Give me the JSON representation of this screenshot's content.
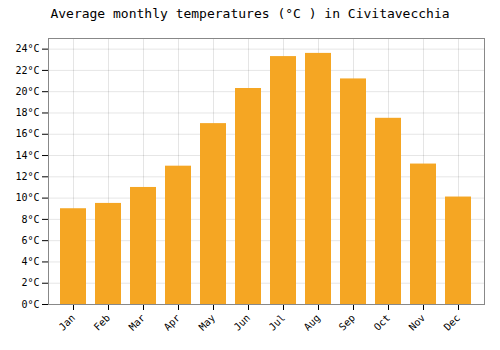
{
  "chart_data": {
    "type": "bar",
    "title": "Average monthly temperatures (°C ) in Civitavecchia",
    "categories": [
      "Jan",
      "Feb",
      "Mar",
      "Apr",
      "May",
      "Jun",
      "Jul",
      "Aug",
      "Sep",
      "Oct",
      "Nov",
      "Dec"
    ],
    "values": [
      9.0,
      9.5,
      11.0,
      13.0,
      17.0,
      20.3,
      23.3,
      23.6,
      21.2,
      17.5,
      13.2,
      10.1
    ],
    "color": "#F5A623",
    "ylim": [
      0,
      25
    ],
    "yticks": [
      {
        "value": 0,
        "label": "0°C"
      },
      {
        "value": 2,
        "label": "2°C"
      },
      {
        "value": 4,
        "label": "4°C"
      },
      {
        "value": 6,
        "label": "6°C"
      },
      {
        "value": 8,
        "label": "8°C"
      },
      {
        "value": 10,
        "label": "10°C"
      },
      {
        "value": 12,
        "label": "12°C"
      },
      {
        "value": 14,
        "label": "14°C"
      },
      {
        "value": 16,
        "label": "16°C"
      },
      {
        "value": 18,
        "label": "18°C"
      },
      {
        "value": 20,
        "label": "20°C"
      },
      {
        "value": 22,
        "label": "22°C"
      },
      {
        "value": 24,
        "label": "24°C"
      }
    ],
    "grid": true
  }
}
